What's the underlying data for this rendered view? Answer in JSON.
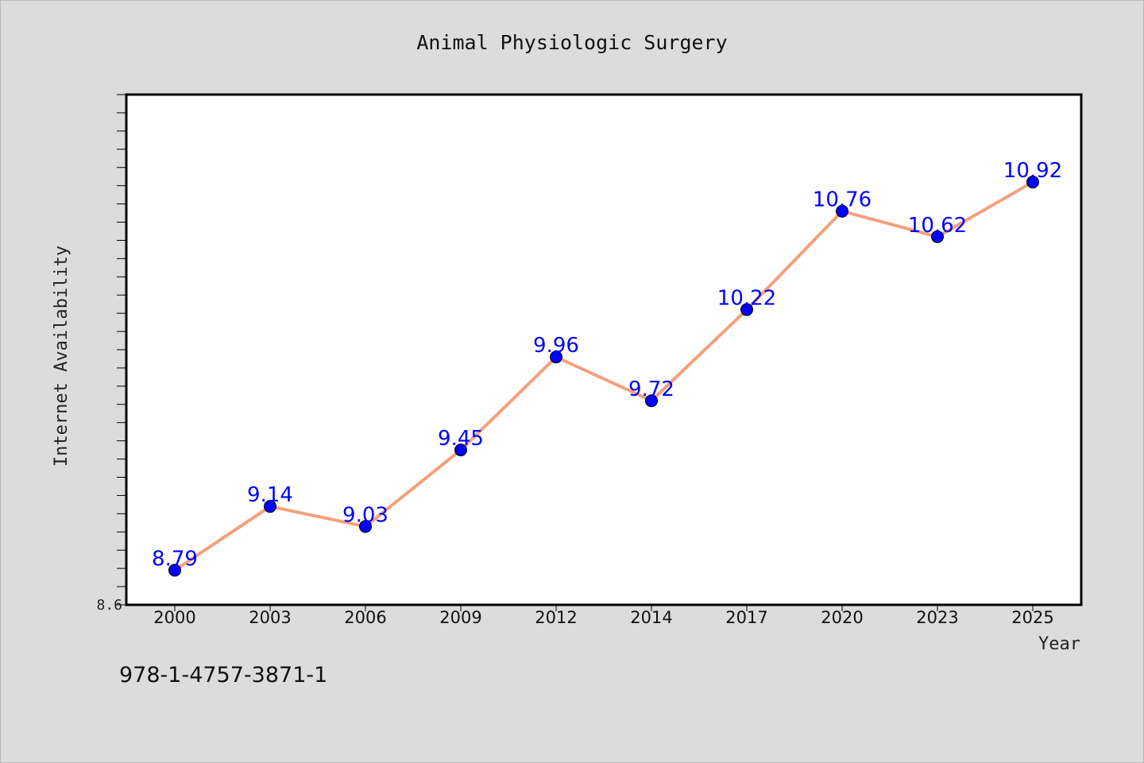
{
  "colors": {
    "background": "#dcdcdc",
    "plot_background": "#ffffff",
    "line": "#f4a07c",
    "marker": "#0000ff",
    "data_label": "#0000ff",
    "axis": "#000000"
  },
  "footnote": "978-1-4757-3871-1",
  "chart_data": {
    "type": "line",
    "title": "Animal Physiologic Surgery",
    "xlabel": "Year",
    "ylabel": "Internet Availability",
    "categories": [
      "2000",
      "2003",
      "2006",
      "2009",
      "2012",
      "2014",
      "2017",
      "2020",
      "2023",
      "2025"
    ],
    "series": [
      {
        "values": [
          8.79,
          9.14,
          9.03,
          9.45,
          9.96,
          9.72,
          10.22,
          10.76,
          10.62,
          10.92
        ],
        "data_labels": [
          "8.79",
          "9.14",
          "9.03",
          "9.45",
          "9.96",
          "9.72",
          "10.22",
          "10.76",
          "10.62",
          "10.92"
        ]
      }
    ],
    "ylim": [
      8.6,
      11.4
    ],
    "ytick_labels": [
      "8.6"
    ],
    "ytick_minor_step": 0.1,
    "grid": false,
    "legend": "none"
  }
}
